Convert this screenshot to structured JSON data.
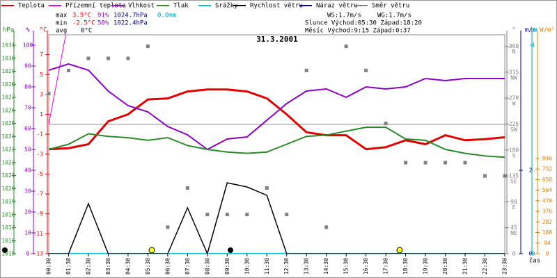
{
  "chart_data": {
    "type": "line",
    "title": "31.3.2001",
    "header": {
      "max": "max",
      "max_t": "3.5°C",
      "max_h": "91%",
      "max_p": "1024.7hPa",
      "max_r": "0.0mm",
      "min": "min",
      "min_t": "-2.5°C",
      "min_h": "50%",
      "min_p": "1022.4hPa",
      "avg": "avg",
      "avg_t": "0°C",
      "ws": "WS:1.7m/s",
      "wg": "WG:1.7m/s",
      "sun": "Slunce Východ:05:30  Západ:18:20",
      "moon": "Měsíc  Východ:9:15   Západ:0:37"
    },
    "x_label": "čas",
    "categories": [
      "00:30",
      "01:30",
      "02:30",
      "03:30",
      "04:30",
      "05:30",
      "06:30",
      "07:30",
      "08:30",
      "09:30",
      "10:30",
      "11:30",
      "12:30",
      "13:30",
      "14:30",
      "15:30",
      "16:30",
      "17:30",
      "18:30",
      "19:30",
      "20:30",
      "21:30",
      "22:30",
      "23:30"
    ],
    "axes": {
      "hpa": {
        "label": "hPa",
        "color": "#2a8a2a",
        "ylim": [
          1015,
          1031.8
        ],
        "yticks": [
          1015,
          1016,
          1017,
          1018,
          1019,
          1020,
          1021,
          1022,
          1023,
          1024,
          1025,
          1026,
          1027,
          1028,
          1029,
          1030,
          1031
        ]
      },
      "pct": {
        "label": "%",
        "color": "#8a00c0",
        "ylim": [
          0,
          105
        ],
        "yticks": [
          0,
          10,
          20,
          30,
          40,
          50,
          60,
          70,
          80,
          90,
          100
        ]
      },
      "degc": {
        "label": "°C",
        "color": "#e00000",
        "ylim": [
          -13,
          9
        ],
        "yticks": [
          -13,
          -11,
          -9,
          -7,
          -5,
          -3,
          -1,
          1,
          3,
          5,
          7
        ]
      },
      "dir": {
        "label": "°",
        "color": "#808080",
        "ylim": [
          0,
          380
        ],
        "yticks": [
          0,
          45,
          90,
          135,
          180,
          225,
          270,
          315,
          360
        ],
        "compass": [
          null,
          "NE",
          "E",
          "SE",
          "S",
          "SW",
          "W",
          "NW",
          "N"
        ]
      },
      "ms": {
        "label": "m/s",
        "color": "#000080",
        "ylim": [
          0,
          5.25
        ],
        "yticks": [
          0,
          2
        ]
      },
      "mm": {
        "label": "mm",
        "color": "#00a0c0",
        "ylim": [
          0,
          1.05
        ],
        "yticks": [
          0,
          1
        ]
      },
      "wm2": {
        "label": "W/m²",
        "color": "#e08000",
        "ylim": [
          0,
          1945
        ],
        "yticks": [
          0,
          94,
          188,
          282,
          376,
          470,
          564,
          658,
          752,
          846
        ]
      }
    },
    "zero_line": 0,
    "series": [
      {
        "name": "Teplota",
        "color": "#e00000",
        "axis": "degc",
        "width": 3,
        "values": [
          -2.5,
          -2.4,
          -2.0,
          0.3,
          1.0,
          2.5,
          2.6,
          3.3,
          3.5,
          3.5,
          3.3,
          2.6,
          1.0,
          -0.8,
          -1.1,
          -1.1,
          -2.5,
          -2.3,
          -1.6,
          -2.0,
          -1.1,
          -1.6,
          -1.5,
          -1.3
        ]
      },
      {
        "name": "Přízemní teplota",
        "color": "#e000e0",
        "axis": "degc",
        "width": 1,
        "values": [
          0.0,
          10.5,
          null,
          null,
          null,
          null,
          null,
          null,
          null,
          null,
          null,
          null,
          null,
          null,
          null,
          null,
          null,
          null,
          null,
          null,
          null,
          null,
          null,
          null
        ]
      },
      {
        "name": "Vlhkost",
        "color": "#8a00c0",
        "axis": "pct",
        "width": 2,
        "values": [
          88,
          91,
          88,
          78,
          71,
          68,
          61,
          57,
          50,
          55,
          56,
          64,
          72,
          78,
          79,
          75,
          80,
          79,
          80,
          84,
          83,
          84,
          84,
          84
        ]
      },
      {
        "name": "Tlak",
        "color": "#2a8a2a",
        "axis": "hpa",
        "width": 2,
        "values": [
          1023.0,
          1023.4,
          1024.2,
          1024.0,
          1023.9,
          1023.7,
          1023.9,
          1023.3,
          1023.0,
          1022.8,
          1022.7,
          1022.8,
          1023.4,
          1024.0,
          1024.1,
          1024.4,
          1024.7,
          1024.7,
          1023.8,
          1023.7,
          1023.0,
          1022.7,
          1022.5,
          1022.4
        ]
      },
      {
        "name": "Srážky",
        "color": "#00c0e0",
        "axis": "mm",
        "width": 2,
        "values": [
          0,
          0,
          0,
          0,
          0,
          0,
          0,
          0,
          0,
          0,
          0,
          0,
          0,
          0,
          0,
          0,
          0,
          0,
          0,
          0,
          0,
          0,
          0,
          0
        ]
      },
      {
        "name": "Rychlost větru",
        "color": "#000000",
        "axis": "ms",
        "width": 1.5,
        "values": [
          0,
          0,
          1.2,
          0,
          0,
          0,
          0,
          1.1,
          0,
          1.7,
          1.6,
          1.4,
          0,
          0,
          0,
          0,
          0,
          0,
          0,
          0,
          0,
          0,
          0,
          0
        ]
      },
      {
        "name": "Náraz větru",
        "color": "#000080",
        "axis": "ms",
        "width": 1.5,
        "values": [
          null,
          null,
          null,
          null,
          null,
          null,
          null,
          null,
          null,
          null,
          null,
          null,
          null,
          null,
          null,
          null,
          null,
          null,
          null,
          null,
          null,
          null,
          null,
          null
        ]
      },
      {
        "name": "Směr větru",
        "color": "#808080",
        "axis": "dir",
        "marker": "square",
        "values": [
          278,
          318,
          339,
          339,
          339,
          360,
          46,
          114,
          68,
          68,
          68,
          114,
          68,
          318,
          46,
          360,
          318,
          226,
          158,
          158,
          158,
          158,
          135,
          135
        ]
      }
    ]
  }
}
